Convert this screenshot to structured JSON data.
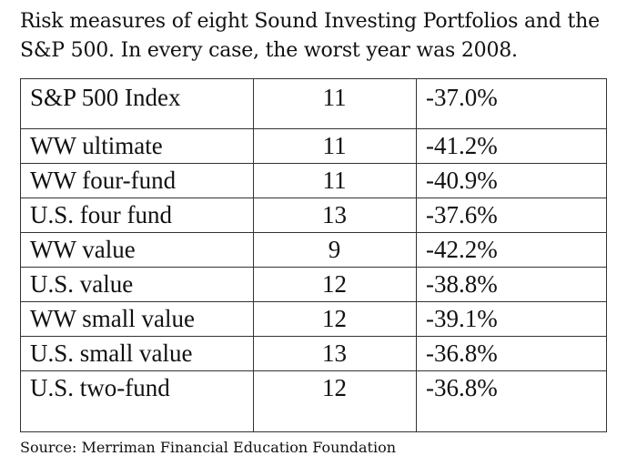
{
  "caption": {
    "line1": "Risk measures of eight Sound Investing Portfolios and the",
    "line2": "S&P 500. In every case, the worst year was 2008."
  },
  "table": {
    "benchmark": {
      "name": "S&P 500 Index",
      "value": "11",
      "worst": "-37.0%"
    },
    "rows": [
      {
        "name": "WW ultimate",
        "value": "11",
        "worst": "-41.2%"
      },
      {
        "name": "WW four-fund",
        "value": "11",
        "worst": "-40.9%"
      },
      {
        "name": "U.S. four fund",
        "value": "13",
        "worst": "-37.6%"
      },
      {
        "name": "WW value",
        "value": "9",
        "worst": "-42.2%"
      },
      {
        "name": "U.S. value",
        "value": "12",
        "worst": "-38.8%"
      },
      {
        "name": "WW small value",
        "value": "12",
        "worst": "-39.1%"
      },
      {
        "name": "U.S. small value",
        "value": "13",
        "worst": "-36.8%"
      },
      {
        "name": "U.S. two-fund",
        "value": "12",
        "worst": "-36.8%"
      }
    ]
  },
  "source": "Source: Merriman Financial Education Foundation"
}
